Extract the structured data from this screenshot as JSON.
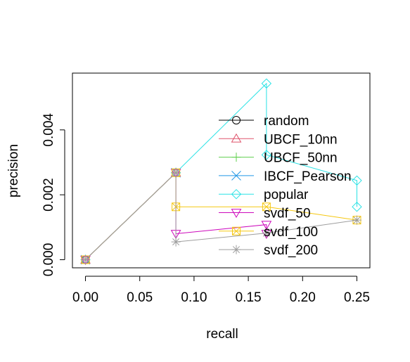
{
  "chart_data": {
    "type": "line",
    "title": "",
    "xlabel": "recall",
    "ylabel": "precision",
    "xlim": [
      -0.012,
      0.262
    ],
    "ylim": [
      -0.00025,
      0.00575
    ],
    "x_ticks": [
      0.0,
      0.05,
      0.1,
      0.15,
      0.2,
      0.25
    ],
    "x_tick_labels": [
      "0.00",
      "0.05",
      "0.10",
      "0.15",
      "0.20",
      "0.25"
    ],
    "y_ticks": [
      0.0,
      0.002,
      0.004
    ],
    "y_tick_labels": [
      "0.000",
      "0.002",
      "0.004"
    ],
    "grid": false,
    "legend_position": "right",
    "series": [
      {
        "name": "random",
        "color": "#000000",
        "marker": "circle",
        "x": [
          0.0
        ],
        "y": [
          0.0
        ]
      },
      {
        "name": "UBCF_10nn",
        "color": "#DF536B",
        "marker": "triangle-up",
        "x": [
          0.0,
          0.0833
        ],
        "y": [
          0.0,
          0.00268
        ]
      },
      {
        "name": "UBCF_50nn",
        "color": "#61D04F",
        "marker": "plus",
        "x": [
          0.0,
          0.0833
        ],
        "y": [
          0.0,
          0.00268
        ]
      },
      {
        "name": "IBCF_Pearson",
        "color": "#2297E6",
        "marker": "cross",
        "x": [
          0.0,
          0.0833
        ],
        "y": [
          0.0,
          0.00268
        ]
      },
      {
        "name": "popular",
        "color": "#28E2E5",
        "marker": "diamond",
        "x": [
          0.0,
          0.0833,
          0.1667,
          0.1667,
          0.25,
          0.25
        ],
        "y": [
          0.0,
          0.00268,
          0.00543,
          0.00323,
          0.00244,
          0.00163
        ]
      },
      {
        "name": "svdf_50",
        "color": "#CD0BBC",
        "marker": "triangle-down",
        "x": [
          0.0,
          0.0833,
          0.0833,
          0.1667,
          0.1667
        ],
        "y": [
          0.0,
          0.00268,
          0.0008,
          0.00108,
          0.0008
        ]
      },
      {
        "name": "svdf_100",
        "color": "#F5C710",
        "marker": "square-cross",
        "x": [
          0.0,
          0.0833,
          0.0833,
          0.1667,
          0.25
        ],
        "y": [
          0.0,
          0.00268,
          0.00163,
          0.00163,
          0.00122
        ]
      },
      {
        "name": "svdf_200",
        "color": "#9E9E9E",
        "marker": "asterisk",
        "x": [
          0.0,
          0.0833,
          0.0833,
          0.1667,
          0.25
        ],
        "y": [
          0.0,
          0.00268,
          0.00055,
          0.00082,
          0.00122
        ]
      }
    ]
  }
}
